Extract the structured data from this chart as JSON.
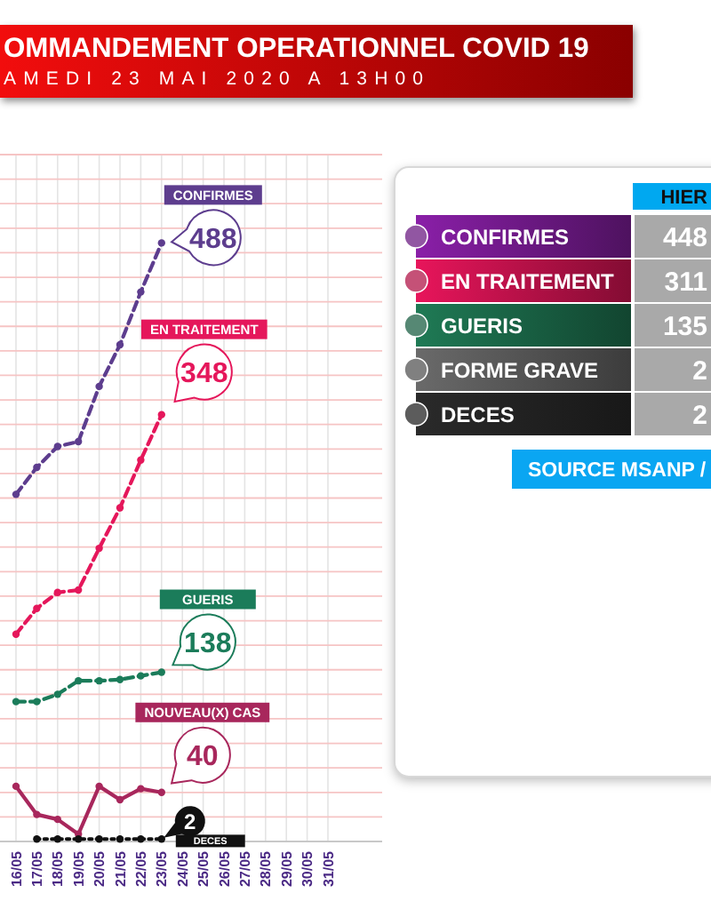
{
  "chart_data": [
    {
      "type": "line",
      "title": "OMMANDEMENT OPERATIONNEL COVID 19",
      "subtitle": "AMEDI 23 MAI 2020 A 13H00",
      "categories": [
        "16/05",
        "17/05",
        "18/05",
        "19/05",
        "20/05",
        "21/05",
        "22/05",
        "23/05",
        "24/05",
        "25/05",
        "26/05",
        "27/05",
        "28/05",
        "29/05",
        "30/05",
        "31/05"
      ],
      "series": [
        {
          "name": "CONFIRMES",
          "color": "#5d3d8e",
          "line_style": "dashed",
          "values": [
            283,
            305,
            322,
            326,
            371,
            405,
            448,
            488,
            null,
            null,
            null,
            null,
            null,
            null,
            null,
            null
          ],
          "value_labels": [
            null,
            null,
            null,
            null,
            null,
            null,
            null,
            "488",
            null,
            null,
            null,
            null,
            null,
            null,
            null,
            null
          ]
        },
        {
          "name": "EN TRAITEMENT",
          "color": "#e5175b",
          "line_style": "dashed",
          "values": [
            169,
            190,
            203,
            205,
            239,
            272,
            311,
            348,
            null,
            null,
            null,
            null,
            null,
            null,
            null,
            null
          ],
          "value_labels": [
            null,
            null,
            null,
            null,
            null,
            null,
            null,
            "348",
            null,
            null,
            null,
            null,
            null,
            null,
            null,
            null
          ]
        },
        {
          "name": "GUERIS",
          "color": "#1b7c5a",
          "line_style": "dashed",
          "values": [
            114,
            114,
            120,
            131,
            131,
            132,
            135,
            138,
            null,
            null,
            null,
            null,
            null,
            null,
            null,
            null
          ],
          "value_labels": [
            null,
            null,
            null,
            null,
            null,
            null,
            null,
            "138",
            null,
            null,
            null,
            null,
            null,
            null,
            null,
            null
          ]
        },
        {
          "name": "NOUVEAU(X) CAS",
          "color": "#a8275c",
          "line_style": "solid",
          "values": [
            45,
            22,
            18,
            6,
            45,
            34,
            43,
            40,
            null,
            null,
            null,
            null,
            null,
            null,
            null,
            null
          ],
          "value_labels": [
            null,
            null,
            null,
            null,
            null,
            null,
            null,
            "40",
            null,
            null,
            null,
            null,
            null,
            null,
            null,
            null
          ]
        },
        {
          "name": "DECES",
          "color": "#111111",
          "line_style": "dotted",
          "values": [
            null,
            2,
            2,
            2,
            2,
            2,
            2,
            2,
            null,
            null,
            null,
            null,
            null,
            null,
            null,
            null
          ],
          "value_labels": [
            null,
            null,
            null,
            null,
            null,
            null,
            null,
            "2",
            null,
            null,
            null,
            null,
            null,
            null,
            null,
            null
          ]
        }
      ],
      "ylim": [
        0,
        560
      ],
      "yticks": [
        {
          "value": 0,
          "label": null
        },
        {
          "value": 20,
          "label": null
        },
        {
          "value": 40,
          "label": null
        },
        {
          "value": 60,
          "label": null
        },
        {
          "value": 80,
          "label": null
        },
        {
          "value": 100,
          "label": null
        },
        {
          "value": 120,
          "label": null
        },
        {
          "value": 140,
          "label": null
        },
        {
          "value": 160,
          "label": null
        },
        {
          "value": 180,
          "label": null
        },
        {
          "value": 200,
          "label": null
        },
        {
          "value": 220,
          "label": null
        },
        {
          "value": 240,
          "label": null
        },
        {
          "value": 260,
          "label": null
        },
        {
          "value": 280,
          "label": null
        },
        {
          "value": 300,
          "label": null
        },
        {
          "value": 320,
          "label": null
        },
        {
          "value": 340,
          "label": null
        },
        {
          "value": 360,
          "label": null
        },
        {
          "value": 380,
          "label": null
        },
        {
          "value": 400,
          "label": null
        },
        {
          "value": 420,
          "label": null
        },
        {
          "value": 440,
          "label": null
        },
        {
          "value": 460,
          "label": null
        },
        {
          "value": 480,
          "label": null
        },
        {
          "value": 500,
          "label": null
        },
        {
          "value": 520,
          "label": null
        },
        {
          "value": 540,
          "label": null
        },
        {
          "value": 560,
          "label": null
        }
      ],
      "grid": true,
      "marker": "circle",
      "tick_labels": "x"
    },
    {
      "type": "other",
      "categories": [
        "CONFIRMES",
        "EN TRAITEMENT",
        "GUERIS",
        "FORME GRAVE",
        "DECES"
      ],
      "colors": [
        "#8a1fa8",
        "#e8155b",
        "#1f7a55",
        "#6a6a6a",
        "#2a2a2a"
      ],
      "series": [
        {
          "name": "HIER",
          "color": "#a9a9a9",
          "values": [
            448,
            311,
            135,
            2,
            2
          ]
        }
      ],
      "data_labels": true,
      "annotations": [
        "SOURCE MSANP /"
      ]
    }
  ]
}
